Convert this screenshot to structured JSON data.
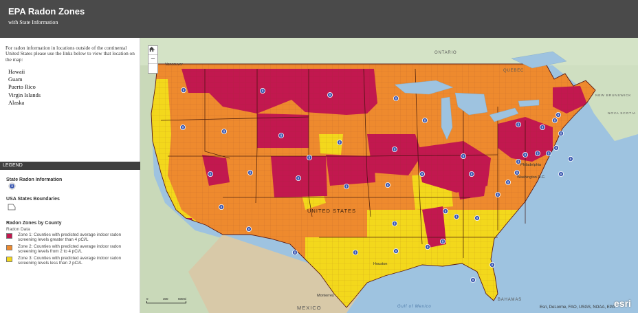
{
  "header": {
    "title": "EPA Radon Zones",
    "subtitle": "with State Information"
  },
  "sidebar": {
    "intro": "For radon information in locations outside of the continental United States please use the links below to view that location on the map:",
    "links": [
      "Hawaii",
      "Guam",
      "Puerto Rico",
      "Virgin Islands",
      "Alaska"
    ]
  },
  "legend": {
    "bar_label": "LEGEND",
    "state_info_heading": "State Radon Information",
    "boundaries_heading": "USA States Boundaries",
    "zones_heading": "Radon Zones by County",
    "zones_sub": "Radon Data",
    "zones": [
      {
        "label": "Zone 1: Counties with predicted average indoor radon screening levels greater than 4 pCi/L",
        "color": "#c2184f"
      },
      {
        "label": "Zone 2: Counties with predicted average indoor radon screening levels from 2 to 4 pCi/L",
        "color": "#ee8a2e"
      },
      {
        "label": "Zone 3: Counties with predicted average indoor radon screening levels less than 2 pCi/L",
        "color": "#f3d81c"
      }
    ],
    "info_icon": "info-circle-icon",
    "boundary_icon": "state-boundary-polygon-icon"
  },
  "map": {
    "zoom_in": "+",
    "zoom_out": "−",
    "home_icon": "home-icon",
    "labels": {
      "ontario": "ONTARIO",
      "quebec": "QUEBEC",
      "united_states": "UNITED STATES",
      "mexico": "MEXICO",
      "bahamas": "BAHAMAS",
      "gulf": "Gulf of Mexico",
      "new_brunswick": "NEW BRUNSWICK",
      "nova_scotia": "NOVA SCOTIA"
    },
    "cities": {
      "vancouver": "Vancouver",
      "philadelphia": "Philadelphia",
      "washington": "Washington D.C.",
      "monterrey": "Monterrey",
      "houston": "Houston"
    },
    "scale": {
      "left": "0",
      "mid": "300",
      "right": "600mi"
    },
    "attribution": "Esri, DeLorme, FAO, USGS, NOAA, EPA",
    "logo": "esri"
  }
}
